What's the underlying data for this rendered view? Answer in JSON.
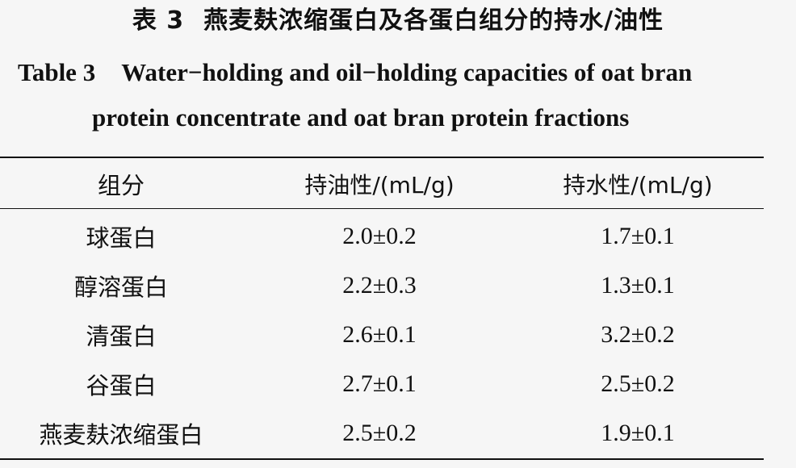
{
  "caption": {
    "cn_label": "表 3",
    "cn_text": "燕麦麸浓缩蛋白及各蛋白组分的持水/油性",
    "en_label": "Table 3",
    "en_line1": "Water−holding and oil−holding capacities of oat bran",
    "en_line2": "protein concentrate and oat bran protein fractions"
  },
  "table": {
    "headers": [
      "组分",
      "持油性/(mL/g)",
      "持水性/(mL/g)"
    ],
    "rows": [
      [
        "球蛋白",
        "2.0±0.2",
        "1.7±0.1"
      ],
      [
        "醇溶蛋白",
        "2.2±0.3",
        "1.3±0.1"
      ],
      [
        "清蛋白",
        "2.6±0.1",
        "3.2±0.2"
      ],
      [
        "谷蛋白",
        "2.7±0.1",
        "2.5±0.2"
      ],
      [
        "燕麦麸浓缩蛋白",
        "2.5±0.2",
        "1.9±0.1"
      ]
    ]
  }
}
